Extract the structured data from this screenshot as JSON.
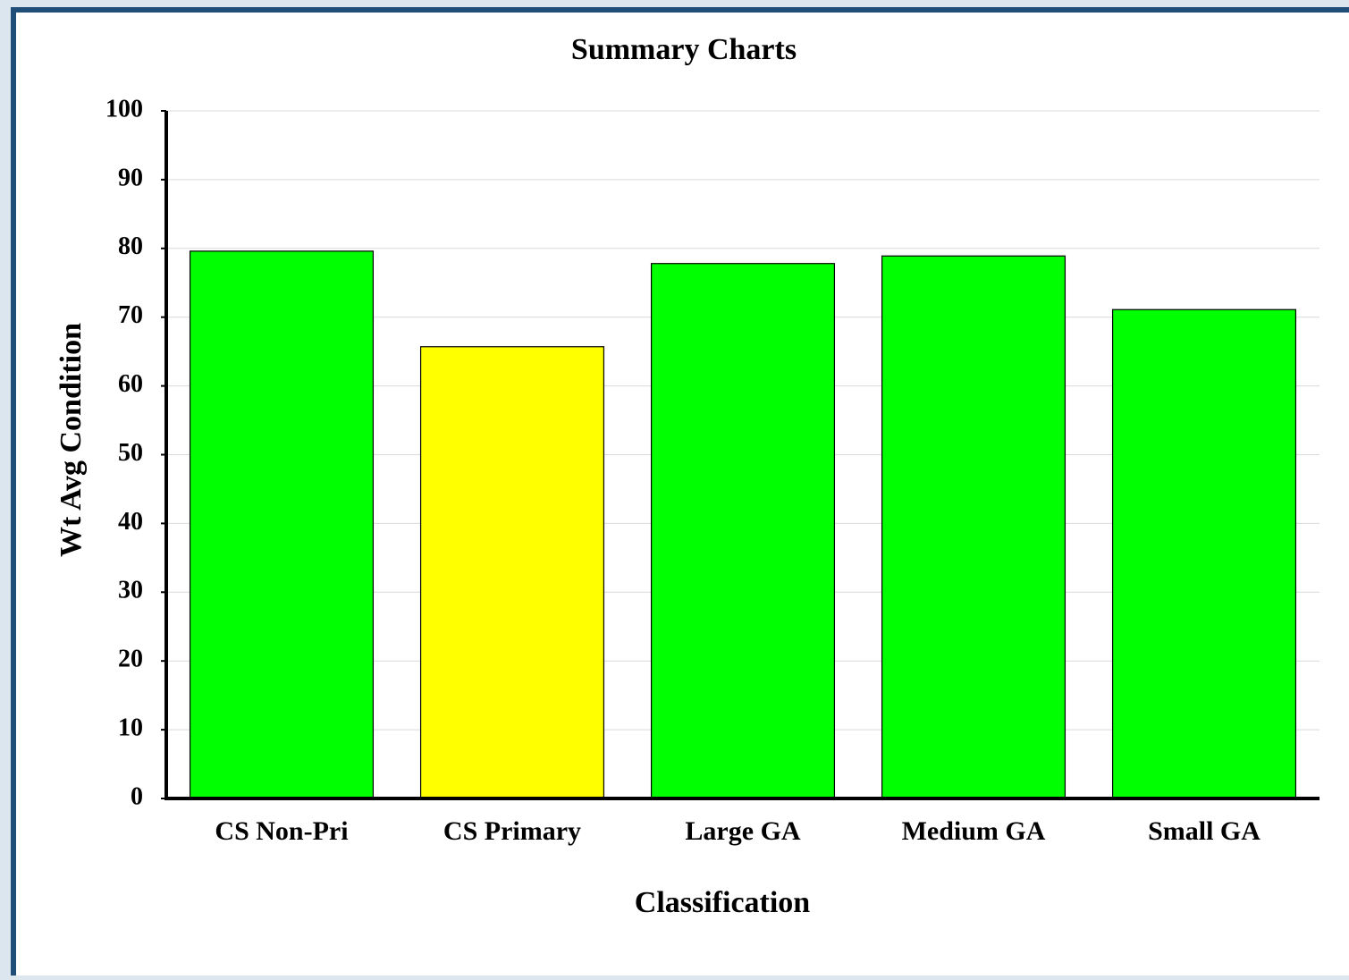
{
  "chart_data": {
    "type": "bar",
    "title": "Summary Charts",
    "x_label": "Classification",
    "y_label": "Wt Avg Condition",
    "categories": [
      "CS Non-Pri",
      "CS Primary",
      "Large GA",
      "Medium GA",
      "Small GA"
    ],
    "values": [
      79.6,
      65.7,
      77.8,
      78.9,
      71.1
    ],
    "colors": [
      "#00ff00",
      "#ffff00",
      "#00ff00",
      "#00ff00",
      "#00ff00"
    ],
    "ylim": [
      0,
      100
    ],
    "yticks": [
      0,
      10,
      20,
      30,
      40,
      50,
      60,
      70,
      80,
      90,
      100
    ],
    "grid": true
  }
}
